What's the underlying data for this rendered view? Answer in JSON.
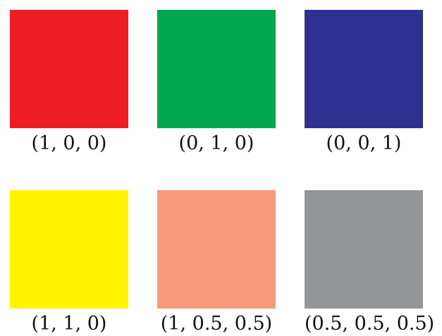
{
  "swatches": [
    {
      "color": "#ee1d23",
      "label": "(1, 0, 0)"
    },
    {
      "color": "#00a650",
      "label": "(0, 1, 0)"
    },
    {
      "color": "#2e3192",
      "label": "(0, 0, 1)"
    },
    {
      "color": "#fff200",
      "label": "(1, 1, 0)"
    },
    {
      "color": "#f69a7b",
      "label": "(1, 0.5, 0.5)"
    },
    {
      "color": "#949598",
      "label": "(0.5, 0.5, 0.5)"
    }
  ]
}
